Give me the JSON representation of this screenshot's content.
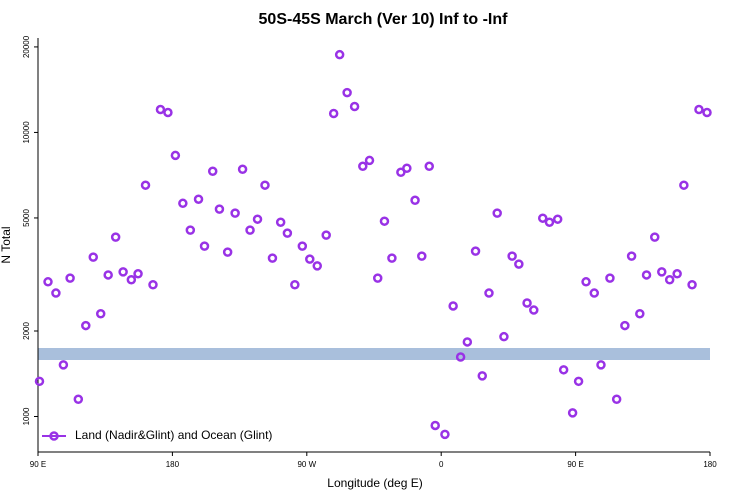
{
  "chart_data": {
    "type": "scatter",
    "title": "50S-45S March (Ver 10)   Inf to -Inf",
    "x_label": "Longitude (deg E)",
    "y_label": "N Total",
    "y_scale": "log",
    "xlim": [
      90,
      540
    ],
    "ylim": [
      750,
      21500
    ],
    "xticks": [
      {
        "value": 90,
        "label": "90 E"
      },
      {
        "value": 180,
        "label": "180"
      },
      {
        "value": 270,
        "label": "90 W"
      },
      {
        "value": 360,
        "label": "0"
      },
      {
        "value": 450,
        "label": "90 E"
      },
      {
        "value": 540,
        "label": "180"
      }
    ],
    "yticks": [
      1000,
      2000,
      5000,
      10000,
      20000
    ],
    "legend_position": "bottom-left",
    "series": [
      {
        "name": "Land (Nadir&Glint) and Ocean (Glint)",
        "color": "#9932e6",
        "x": [
          91,
          96.7,
          102,
          107,
          111.5,
          117,
          122,
          127,
          132,
          137,
          142,
          147,
          152.5,
          157,
          162,
          167,
          172,
          177,
          182,
          187,
          192,
          197.5,
          201.5,
          207,
          211.5,
          217,
          222,
          227,
          232,
          237,
          242,
          247,
          252.5,
          257,
          262,
          267,
          272,
          277,
          283,
          288,
          292,
          297,
          302,
          307.5,
          312,
          317.5,
          322,
          327,
          333,
          337,
          342.5,
          347,
          352,
          356,
          362.5,
          368,
          373,
          377.5,
          383,
          387.5,
          392,
          397.5,
          402,
          407.5,
          412,
          417.5,
          422,
          428,
          432.5,
          438,
          442,
          448,
          452,
          457,
          462.5,
          467,
          473,
          477.5,
          483,
          487.5,
          493,
          497.5,
          503,
          507.7,
          513,
          518,
          522.5,
          528,
          532.6,
          538
        ],
        "values": [
          1330,
          2980,
          2720,
          1520,
          3070,
          1150,
          2090,
          3640,
          2300,
          3150,
          4280,
          3230,
          3030,
          3180,
          6520,
          2910,
          12040,
          11750,
          8300,
          5630,
          4530,
          5820,
          3980,
          7300,
          5370,
          3790,
          5200,
          7420,
          4530,
          4950,
          6520,
          3610,
          4830,
          4420,
          2910,
          3980,
          3580,
          3390,
          4350,
          11660,
          18780,
          13810,
          12340,
          7600,
          7970,
          3070,
          4870,
          3610,
          7240,
          7480,
          5770,
          3670,
          7600,
          930,
          865,
          2450,
          1620,
          1830,
          3820,
          1390,
          2720,
          5200,
          1910,
          3670,
          3440,
          2510,
          2370,
          4990,
          4830,
          4950,
          1460,
          1030,
          1330,
          2980,
          2720,
          1520,
          3070,
          1150,
          2090,
          3670,
          2300,
          3150,
          4280,
          3230,
          3030,
          3180,
          6520,
          2910,
          12040,
          11750
        ]
      }
    ]
  }
}
